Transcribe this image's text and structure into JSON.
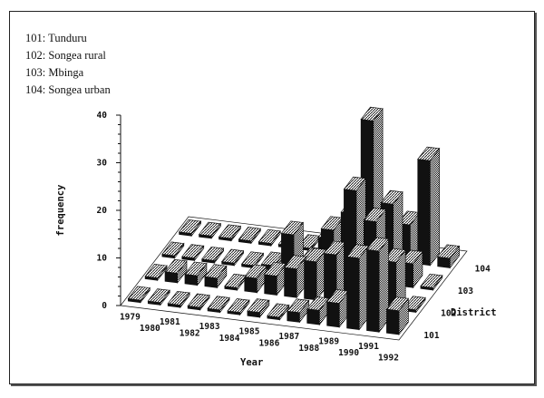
{
  "legend": [
    "101: Tunduru",
    "102: Songea rural",
    "103: Mbinga",
    "104: Songea urban"
  ],
  "chart_data": {
    "type": "bar3d",
    "title": "",
    "xlabel": "Year",
    "ylabel": "frequency",
    "zlabel": "District",
    "ylim": [
      0,
      40
    ],
    "y_ticks": [
      0,
      10,
      20,
      30,
      40
    ],
    "categories": [
      "1979",
      "1980",
      "1981",
      "1982",
      "1983",
      "1984",
      "1985",
      "1986",
      "1987",
      "1988",
      "1989",
      "1990",
      "1991",
      "1992"
    ],
    "districts": [
      "101",
      "102",
      "103",
      "104"
    ],
    "series": [
      {
        "name": "101: Tunduru",
        "values": [
          0,
          0,
          0,
          0,
          0,
          0,
          1,
          0,
          2,
          3,
          5,
          15,
          17,
          5
        ]
      },
      {
        "name": "102: Songea rural",
        "values": [
          0,
          2,
          2,
          2,
          0,
          3,
          4,
          6,
          8,
          10,
          24,
          18,
          10,
          0
        ]
      },
      {
        "name": "103: Mbinga",
        "values": [
          0,
          0,
          0,
          0,
          0,
          1,
          8,
          3,
          10,
          14,
          34,
          17,
          5,
          0
        ]
      },
      {
        "name": "104: Songea urban",
        "values": [
          0,
          0,
          0,
          0,
          0,
          0,
          0,
          3,
          4,
          6,
          5,
          8,
          22,
          2
        ]
      }
    ],
    "grid": false,
    "legend_position": "top-left"
  }
}
